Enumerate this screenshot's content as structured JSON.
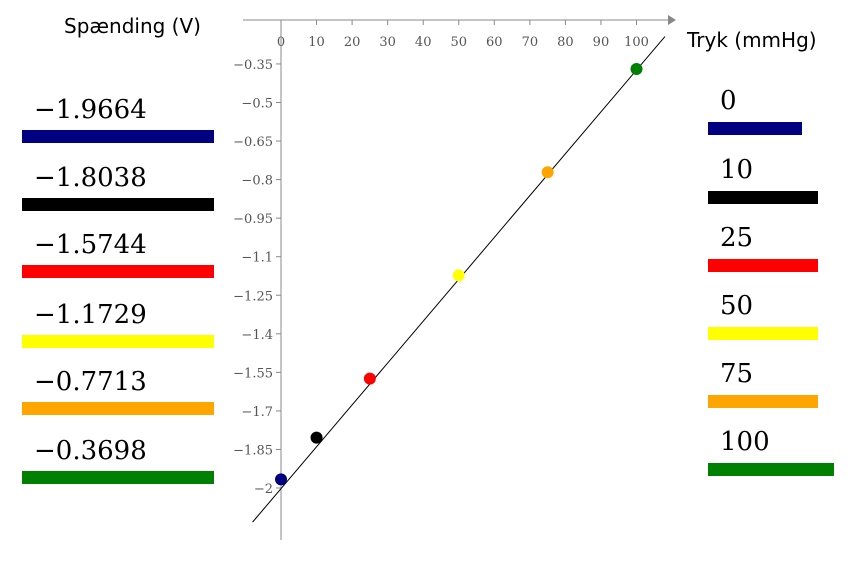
{
  "chart_data": {
    "type": "scatter",
    "xlabel": "Tryk (mmHg)",
    "ylabel": "Spænding (V)",
    "x_ticks": [
      "0",
      "10",
      "20",
      "30",
      "40",
      "50",
      "60",
      "70",
      "80",
      "90",
      "100"
    ],
    "y_ticks": [
      "−0.35",
      "−0.5",
      "−0.65",
      "−0.8",
      "−0.95",
      "−1.1",
      "−1.25",
      "−1.4",
      "−1.55",
      "−1.7",
      "−1.85",
      "−2"
    ],
    "xlim": [
      -5,
      110
    ],
    "ylim": [
      -2.15,
      -0.22
    ],
    "grid": false,
    "points": [
      {
        "x": 0,
        "y": -1.9664,
        "color": "#000080"
      },
      {
        "x": 10,
        "y": -1.8038,
        "color": "#000000"
      },
      {
        "x": 25,
        "y": -1.5744,
        "color": "#ff0000"
      },
      {
        "x": 50,
        "y": -1.1729,
        "color": "#ffff00"
      },
      {
        "x": 75,
        "y": -0.7713,
        "color": "#ffa500"
      },
      {
        "x": 100,
        "y": -0.3698,
        "color": "#008000"
      }
    ],
    "fit_line": {
      "x": [
        -8,
        108
      ],
      "y": [
        -2.1328,
        -0.2433
      ],
      "color": "#000000"
    }
  },
  "voltage_list": [
    {
      "label": "−1.9664",
      "color": "#000080"
    },
    {
      "label": "−1.8038",
      "color": "#000000"
    },
    {
      "label": "−1.5744",
      "color": "#ff0000"
    },
    {
      "label": "−1.1729",
      "color": "#ffff00"
    },
    {
      "label": "−0.7713",
      "color": "#ffa500"
    },
    {
      "label": "−0.3698",
      "color": "#008000"
    }
  ],
  "pressure_list": [
    {
      "label": "0",
      "color": "#000080"
    },
    {
      "label": "10",
      "color": "#000000"
    },
    {
      "label": "25",
      "color": "#ff0000"
    },
    {
      "label": "50",
      "color": "#ffff00"
    },
    {
      "label": "75",
      "color": "#ffa500"
    },
    {
      "label": "100",
      "color": "#008000"
    }
  ]
}
